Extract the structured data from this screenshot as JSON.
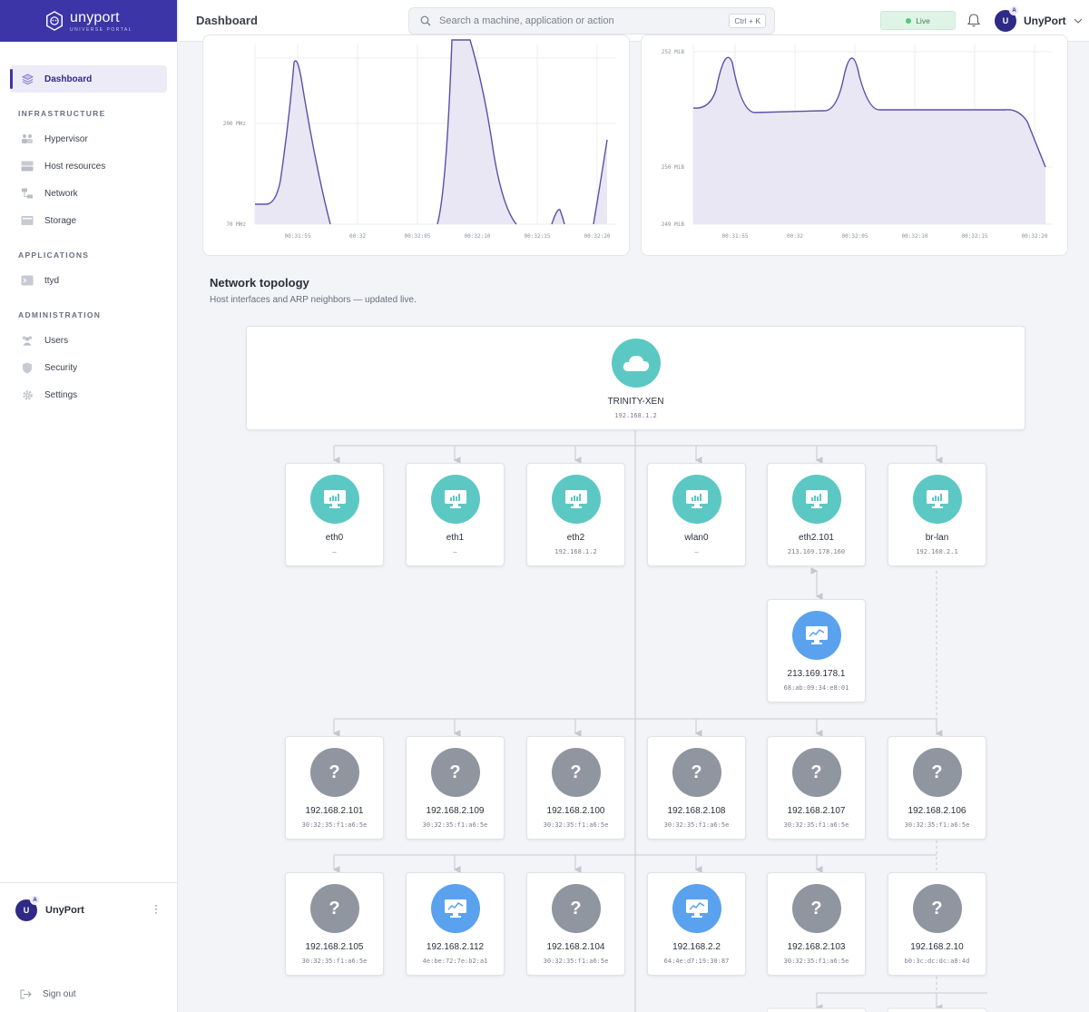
{
  "brand": {
    "name": "unyport",
    "tagline": "UNIVERSE PORTAL"
  },
  "header": {
    "title": "Dashboard",
    "search_placeholder": "Search a machine, application or action",
    "search_shortcut": "Ctrl + K",
    "live_label": "Live",
    "user_name": "UnyPort",
    "user_initial": "U",
    "user_badge": "A"
  },
  "sidebar": {
    "dashboard": "Dashboard",
    "sections": [
      {
        "title": "INFRASTRUCTURE",
        "items": [
          {
            "label": "Hypervisor",
            "icon": "users-group-icon"
          },
          {
            "label": "Host resources",
            "icon": "server-icon"
          },
          {
            "label": "Network",
            "icon": "network-icon"
          },
          {
            "label": "Storage",
            "icon": "storage-icon"
          }
        ]
      },
      {
        "title": "APPLICATIONS",
        "items": [
          {
            "label": "ttyd",
            "icon": "terminal-icon"
          }
        ]
      },
      {
        "title": "ADMINISTRATION",
        "items": [
          {
            "label": "Users",
            "icon": "users-icon"
          },
          {
            "label": "Security",
            "icon": "shield-icon"
          },
          {
            "label": "Settings",
            "icon": "gear-icon"
          }
        ]
      }
    ],
    "user_name": "UnyPort",
    "user_initial": "U",
    "user_badge": "A",
    "sign_out": "Sign out"
  },
  "chart_data": [
    {
      "type": "area",
      "x": [
        "00:31:55",
        "00:32",
        "00:32:05",
        "00:32:10",
        "00:32:15",
        "00:32:20"
      ],
      "y_ticks": [
        "200 MHz",
        "70 MHz"
      ],
      "color": "#5a50a8"
    },
    {
      "type": "area",
      "x": [
        "00:31:55",
        "00:32",
        "00:32:05",
        "00:32:10",
        "00:32:15",
        "00:32:20"
      ],
      "y_ticks": [
        "252 MiB",
        "250 MiB",
        "249 MiB"
      ],
      "color": "#5a50a8"
    }
  ],
  "topology": {
    "title": "Network topology",
    "subtitle": "Host interfaces and ARP neighbors — updated live.",
    "root": {
      "label": "TRINITY-XEN",
      "sub": "192.168.1.2",
      "icon": "cloud-icon"
    },
    "interfaces": [
      {
        "label": "eth0",
        "sub": "–"
      },
      {
        "label": "eth1",
        "sub": "–"
      },
      {
        "label": "eth2",
        "sub": "192.168.1.2"
      },
      {
        "label": "wlan0",
        "sub": "–"
      },
      {
        "label": "eth2.101",
        "sub": "213.169.178.160"
      },
      {
        "label": "br-lan",
        "sub": "192.168.2.1"
      }
    ],
    "gateway": {
      "label": "213.169.178.1",
      "sub": "68:ab:09:34:e8:01"
    },
    "neighbors_row1": [
      {
        "label": "192.168.2.101",
        "sub": "30:32:35:f1:a6:5e",
        "kind": "unknown"
      },
      {
        "label": "192.168.2.109",
        "sub": "30:32:35:f1:a6:5e",
        "kind": "unknown"
      },
      {
        "label": "192.168.2.100",
        "sub": "30:32:35:f1:a6:5e",
        "kind": "unknown"
      },
      {
        "label": "192.168.2.108",
        "sub": "30:32:35:f1:a6:5e",
        "kind": "unknown"
      },
      {
        "label": "192.168.2.107",
        "sub": "30:32:35:f1:a6:5e",
        "kind": "unknown"
      },
      {
        "label": "192.168.2.106",
        "sub": "30:32:35:f1:a6:5e",
        "kind": "unknown"
      }
    ],
    "neighbors_row2": [
      {
        "label": "192.168.2.105",
        "sub": "30:32:35:f1:a6:5e",
        "kind": "unknown"
      },
      {
        "label": "192.168.2.112",
        "sub": "4e:be:72:7e:b2:a1",
        "kind": "device"
      },
      {
        "label": "192.168.2.104",
        "sub": "30:32:35:f1:a6:5e",
        "kind": "unknown"
      },
      {
        "label": "192.168.2.2",
        "sub": "64:4e:d7:19:30:87",
        "kind": "device"
      },
      {
        "label": "192.168.2.103",
        "sub": "30:32:35:f1:a6:5e",
        "kind": "unknown"
      },
      {
        "label": "192.168.2.10",
        "sub": "b0:3c:dc:dc:a8:4d",
        "kind": "unknown"
      }
    ],
    "unknown_glyph": "?"
  }
}
